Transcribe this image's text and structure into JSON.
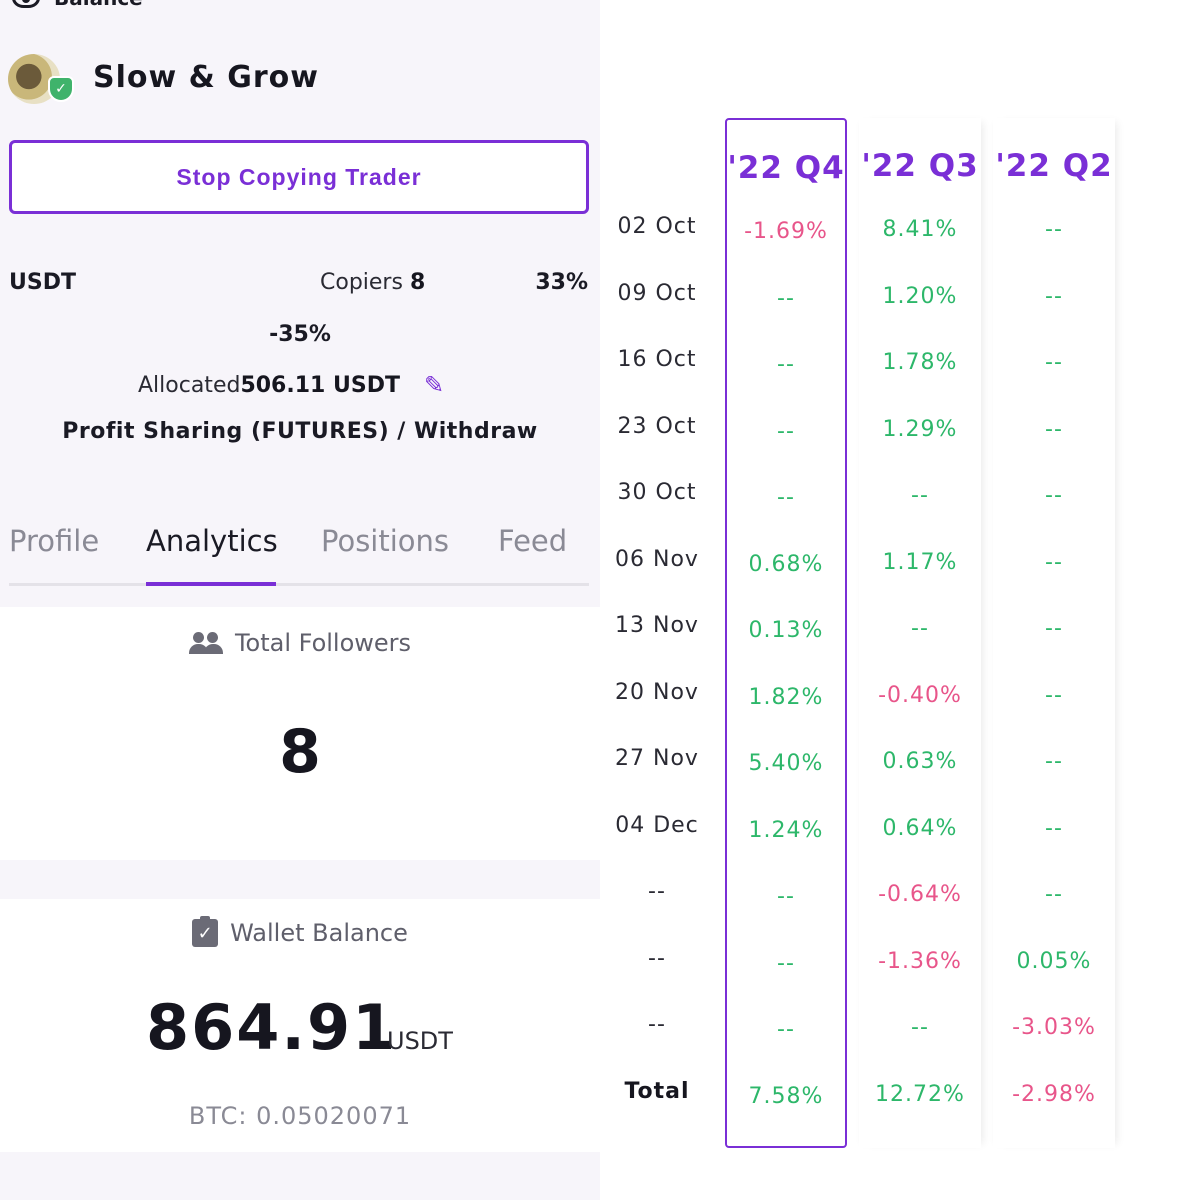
{
  "left": {
    "balance_label": "Balance",
    "trader_name": "Slow & Grow",
    "stop_button": "Stop Copying Trader",
    "currency": "USDT",
    "copiers_label": "Copiers",
    "copiers_value": "8",
    "percent_right": "33%",
    "percent_center": "-35%",
    "allocated_label": "Allocated",
    "allocated_value": "506.11 USDT",
    "profit_sharing": "Profit Sharing (FUTURES) / Withdraw",
    "tabs": [
      "Profile",
      "Analytics",
      "Positions",
      "Feed"
    ],
    "active_tab": "Analytics",
    "followers": {
      "label": "Total Followers",
      "value": "8"
    },
    "wallet": {
      "label": "Wallet Balance",
      "value": "864.91",
      "unit": "USDT",
      "btc": "BTC: 0.05020071"
    }
  },
  "right": {
    "columns": [
      "'22 Q4",
      "'22 Q3",
      "'22 Q2"
    ],
    "rows": [
      {
        "date": "02 Oct",
        "q4": "-1.69%",
        "q3": "8.41%",
        "q2": "--"
      },
      {
        "date": "09 Oct",
        "q4": "--",
        "q3": "1.20%",
        "q2": "--"
      },
      {
        "date": "16 Oct",
        "q4": "--",
        "q3": "1.78%",
        "q2": "--"
      },
      {
        "date": "23 Oct",
        "q4": "--",
        "q3": "1.29%",
        "q2": "--"
      },
      {
        "date": "30 Oct",
        "q4": "--",
        "q3": "--",
        "q2": "--"
      },
      {
        "date": "06 Nov",
        "q4": "0.68%",
        "q3": "1.17%",
        "q2": "--"
      },
      {
        "date": "13 Nov",
        "q4": "0.13%",
        "q3": "--",
        "q2": "--"
      },
      {
        "date": "20 Nov",
        "q4": "1.82%",
        "q3": "-0.40%",
        "q2": "--"
      },
      {
        "date": "27 Nov",
        "q4": "5.40%",
        "q3": "0.63%",
        "q2": "--"
      },
      {
        "date": "04 Dec",
        "q4": "1.24%",
        "q3": "0.64%",
        "q2": "--"
      },
      {
        "date": "--",
        "q4": "--",
        "q3": "-0.64%",
        "q2": "--"
      },
      {
        "date": "--",
        "q4": "--",
        "q3": "-1.36%",
        "q2": "0.05%"
      },
      {
        "date": "--",
        "q4": "--",
        "q3": "--",
        "q2": "-3.03%"
      },
      {
        "date": "Total",
        "q4": "7.58%",
        "q3": "12.72%",
        "q2": "-2.98%"
      }
    ],
    "colors": {
      "positive": "#2db76a",
      "negative": "#e8558a",
      "accent": "#7a2fd6"
    }
  }
}
